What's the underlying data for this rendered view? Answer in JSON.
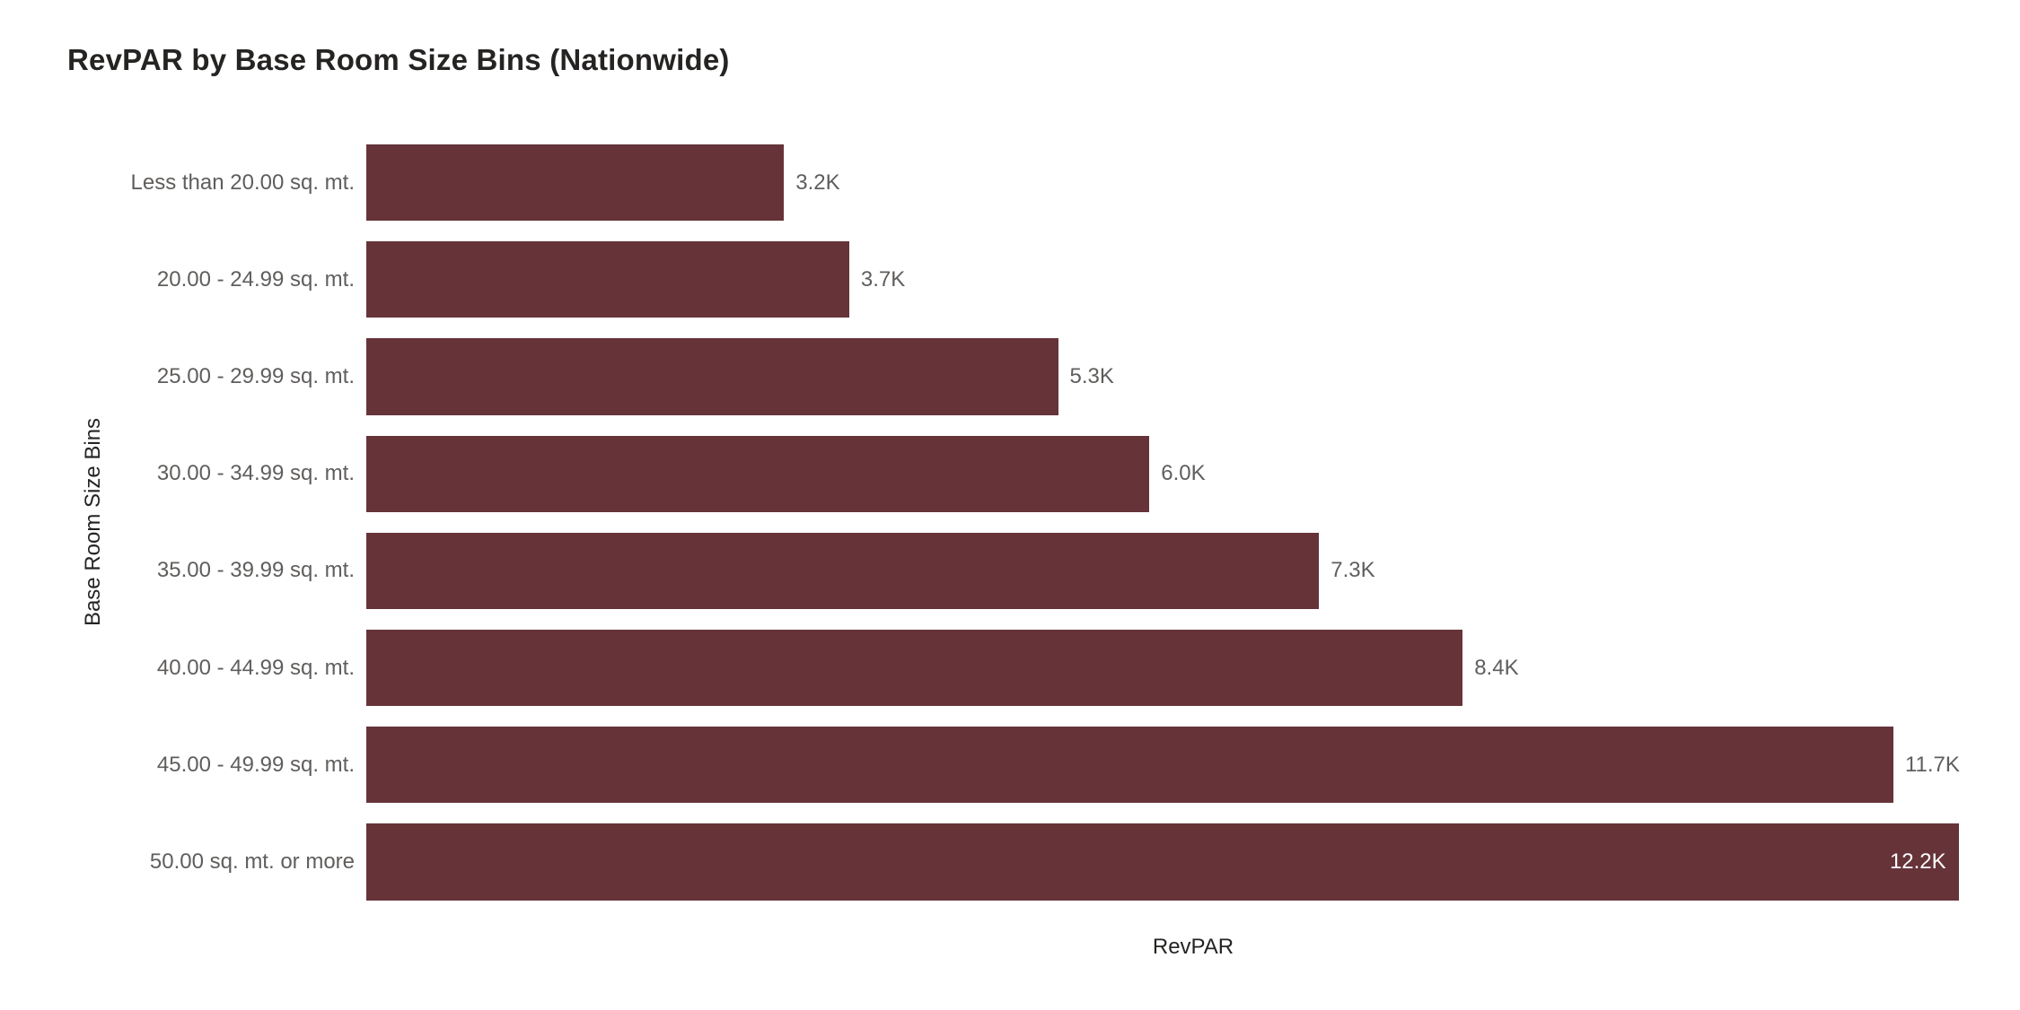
{
  "page": {
    "background": "#FFFFFF"
  },
  "chart_data": {
    "type": "bar",
    "orientation": "horizontal",
    "title": "RevPAR by Base Room Size Bins (Nationwide)",
    "xlabel": "RevPAR",
    "ylabel": "Base Room Size Bins",
    "categories": [
      "Less than 20.00 sq. mt.",
      "20.00 - 24.99 sq. mt.",
      "25.00 - 29.99 sq. mt.",
      "30.00 - 34.99 sq. mt.",
      "35.00 - 39.99 sq. mt.",
      "40.00 - 44.99 sq. mt.",
      "45.00 - 49.99 sq. mt.",
      "50.00 sq. mt. or more"
    ],
    "values": [
      3200,
      3700,
      5300,
      6000,
      7300,
      8400,
      11700,
      12200
    ],
    "value_labels": [
      "3.2K",
      "3.7K",
      "5.3K",
      "6.0K",
      "7.3K",
      "8.4K",
      "11.7K",
      "12.2K"
    ],
    "xlim": [
      0,
      12670
    ],
    "grid": false,
    "axis_tick_labels_visible": false,
    "legend": "none",
    "colors": {
      "bar": "#663339",
      "category_label": "#605E5C",
      "value_label": "#605E5C",
      "value_label_inside": "#FFFFFF",
      "title": "#252423",
      "axis_title": "#252423"
    }
  }
}
